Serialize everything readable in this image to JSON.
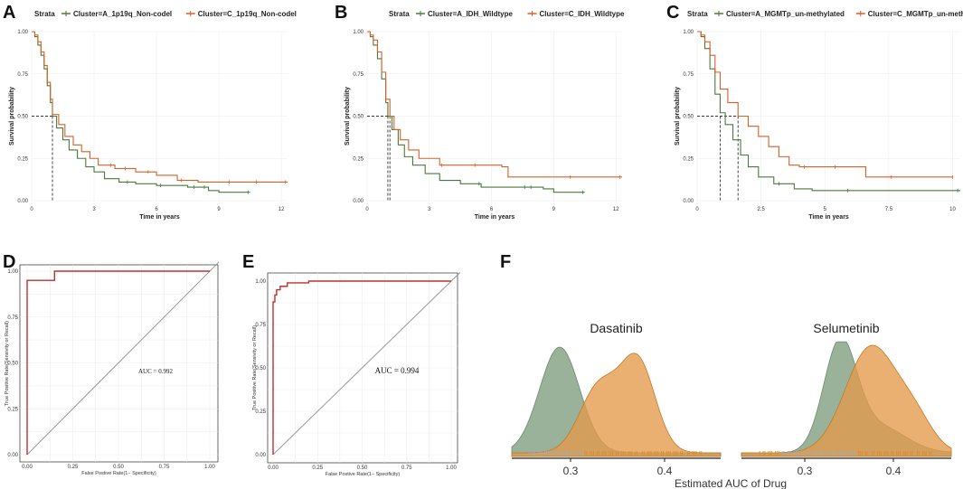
{
  "colors": {
    "clusterA": "#4a7a3a",
    "clusterC": "#d4612a",
    "roc": "#c0302e",
    "diag": "#999999",
    "densA": "#8fa88f",
    "densC": "#e39a4a",
    "rugA": "#a9a9a9",
    "rugC": "#e08a2a"
  },
  "panel_labels": [
    "A",
    "B",
    "C",
    "D",
    "E",
    "F"
  ],
  "chart_data": [
    {
      "id": "A",
      "type": "line",
      "subtype": "kaplan-meier",
      "legend_title": "Strata",
      "xlabel": "Time in years",
      "ylabel": "Survival probability",
      "xlim": [
        0,
        12.3
      ],
      "ylim": [
        0,
        1.0
      ],
      "x_ticks": [
        0,
        3,
        6,
        9,
        12
      ],
      "y_ticks": [
        "0.00",
        "0.25",
        "0.50",
        "0.75",
        "1.00"
      ],
      "median_lines": [
        1.0
      ],
      "series": [
        {
          "name": "Cluster=A_1p19q_Non-codel",
          "color_key": "clusterA",
          "points": [
            [
              0,
              1.0
            ],
            [
              0.15,
              0.97
            ],
            [
              0.3,
              0.92
            ],
            [
              0.45,
              0.86
            ],
            [
              0.6,
              0.78
            ],
            [
              0.75,
              0.68
            ],
            [
              0.9,
              0.58
            ],
            [
              1.0,
              0.5
            ],
            [
              1.2,
              0.43
            ],
            [
              1.5,
              0.36
            ],
            [
              1.8,
              0.3
            ],
            [
              2.2,
              0.25
            ],
            [
              2.6,
              0.2
            ],
            [
              3.0,
              0.17
            ],
            [
              3.5,
              0.13
            ],
            [
              4.2,
              0.11
            ],
            [
              5.0,
              0.1
            ],
            [
              6.0,
              0.09
            ],
            [
              7.5,
              0.08
            ],
            [
              8.5,
              0.06
            ],
            [
              9.0,
              0.05
            ],
            [
              10.5,
              0.05
            ]
          ],
          "censor": [
            4.6,
            6.2,
            7.8,
            8.3,
            10.4
          ]
        },
        {
          "name": "Cluster=C_1p19q_Non-codel",
          "color_key": "clusterC",
          "points": [
            [
              0,
              1.0
            ],
            [
              0.15,
              0.98
            ],
            [
              0.3,
              0.94
            ],
            [
              0.45,
              0.88
            ],
            [
              0.6,
              0.8
            ],
            [
              0.75,
              0.7
            ],
            [
              0.9,
              0.6
            ],
            [
              1.0,
              0.51
            ],
            [
              1.3,
              0.45
            ],
            [
              1.6,
              0.38
            ],
            [
              2.0,
              0.33
            ],
            [
              2.4,
              0.29
            ],
            [
              2.8,
              0.25
            ],
            [
              3.2,
              0.21
            ],
            [
              4.0,
              0.19
            ],
            [
              5.0,
              0.17
            ],
            [
              6.0,
              0.15
            ],
            [
              7.0,
              0.12
            ],
            [
              8.0,
              0.11
            ],
            [
              9.0,
              0.11
            ],
            [
              12.3,
              0.11
            ]
          ],
          "censor": [
            3.8,
            4.5,
            5.6,
            7.2,
            9.5,
            10.8,
            12.2
          ]
        }
      ]
    },
    {
      "id": "B",
      "type": "line",
      "subtype": "kaplan-meier",
      "legend_title": "Strata",
      "xlabel": "Time in years",
      "ylabel": "Survival probability",
      "xlim": [
        0,
        12.3
      ],
      "ylim": [
        0,
        1.0
      ],
      "x_ticks": [
        0,
        3,
        6,
        9,
        12
      ],
      "y_ticks": [
        "0.00",
        "0.25",
        "0.50",
        "0.75",
        "1.00"
      ],
      "median_lines": [
        1.0,
        1.1
      ],
      "series": [
        {
          "name": "Cluster=A_IDH_Wildtype",
          "color_key": "clusterA",
          "points": [
            [
              0,
              1.0
            ],
            [
              0.15,
              0.97
            ],
            [
              0.3,
              0.92
            ],
            [
              0.5,
              0.84
            ],
            [
              0.7,
              0.72
            ],
            [
              0.9,
              0.58
            ],
            [
              1.0,
              0.5
            ],
            [
              1.2,
              0.42
            ],
            [
              1.5,
              0.33
            ],
            [
              1.8,
              0.26
            ],
            [
              2.2,
              0.21
            ],
            [
              2.8,
              0.16
            ],
            [
              3.5,
              0.12
            ],
            [
              4.5,
              0.1
            ],
            [
              5.5,
              0.08
            ],
            [
              7.0,
              0.08
            ],
            [
              8.5,
              0.07
            ],
            [
              9.0,
              0.05
            ],
            [
              10.5,
              0.05
            ]
          ],
          "censor": [
            5.4,
            7.6,
            7.9,
            10.4
          ]
        },
        {
          "name": "Cluster=C_IDH_Wildtype",
          "color_key": "clusterC",
          "points": [
            [
              0,
              1.0
            ],
            [
              0.15,
              0.98
            ],
            [
              0.3,
              0.95
            ],
            [
              0.5,
              0.88
            ],
            [
              0.7,
              0.76
            ],
            [
              0.9,
              0.6
            ],
            [
              1.1,
              0.5
            ],
            [
              1.3,
              0.42
            ],
            [
              1.6,
              0.36
            ],
            [
              2.0,
              0.3
            ],
            [
              2.5,
              0.25
            ],
            [
              3.5,
              0.21
            ],
            [
              5.0,
              0.21
            ],
            [
              6.5,
              0.2
            ],
            [
              6.8,
              0.14
            ],
            [
              9.0,
              0.14
            ],
            [
              12.3,
              0.14
            ]
          ],
          "censor": [
            3.6,
            5.2,
            9.8,
            12.2
          ]
        }
      ]
    },
    {
      "id": "C",
      "type": "line",
      "subtype": "kaplan-meier",
      "legend_title": "Strata",
      "xlabel": "Time in years",
      "ylabel": "Survival probability",
      "xlim": [
        0,
        10.3
      ],
      "ylim": [
        0,
        1.0
      ],
      "x_ticks": [
        0,
        2.5,
        5,
        7.5,
        10
      ],
      "y_ticks": [
        "0.00",
        "0.25",
        "0.50",
        "0.75",
        "1.00"
      ],
      "median_lines": [
        0.9,
        1.6
      ],
      "series": [
        {
          "name": "Cluster=A_MGMTp_un-methylated",
          "color_key": "clusterA",
          "points": [
            [
              0,
              1.0
            ],
            [
              0.15,
              0.97
            ],
            [
              0.3,
              0.9
            ],
            [
              0.5,
              0.78
            ],
            [
              0.7,
              0.63
            ],
            [
              0.9,
              0.52
            ],
            [
              1.1,
              0.45
            ],
            [
              1.4,
              0.36
            ],
            [
              1.7,
              0.27
            ],
            [
              2.0,
              0.2
            ],
            [
              2.4,
              0.14
            ],
            [
              3.0,
              0.1
            ],
            [
              3.8,
              0.07
            ],
            [
              4.5,
              0.06
            ],
            [
              6.0,
              0.06
            ],
            [
              8.0,
              0.06
            ],
            [
              10.3,
              0.06
            ]
          ],
          "censor": [
            3.2,
            5.9,
            10.2
          ]
        },
        {
          "name": "Cluster=C_MGMTp_un-methylated",
          "color_key": "clusterC",
          "points": [
            [
              0,
              1.0
            ],
            [
              0.15,
              0.98
            ],
            [
              0.3,
              0.94
            ],
            [
              0.5,
              0.86
            ],
            [
              0.7,
              0.76
            ],
            [
              0.9,
              0.66
            ],
            [
              1.2,
              0.58
            ],
            [
              1.6,
              0.5
            ],
            [
              2.0,
              0.44
            ],
            [
              2.4,
              0.38
            ],
            [
              2.8,
              0.32
            ],
            [
              3.2,
              0.26
            ],
            [
              3.6,
              0.21
            ],
            [
              4.0,
              0.2
            ],
            [
              5.5,
              0.2
            ],
            [
              6.5,
              0.2
            ],
            [
              6.6,
              0.14
            ],
            [
              8.5,
              0.14
            ],
            [
              10.0,
              0.14
            ]
          ],
          "censor": [
            4.2,
            5.4,
            7.6,
            10.0
          ]
        }
      ]
    },
    {
      "id": "D",
      "type": "line",
      "subtype": "roc",
      "xlabel": "False Postive Rate(1− Specificity)",
      "ylabel": "True Positive Rate(Sensivity or Recall)",
      "x_ticks": [
        "0.00",
        "0.25",
        "0.50",
        "0.75",
        "1.00"
      ],
      "y_ticks": [
        "0.00",
        "0.25",
        "0.50",
        "0.75",
        "1.00"
      ],
      "auc_label": "AUC = 0.992",
      "points": [
        [
          0,
          0
        ],
        [
          0,
          0.95
        ],
        [
          0.15,
          0.95
        ],
        [
          0.15,
          1.0
        ],
        [
          1.0,
          1.0
        ]
      ]
    },
    {
      "id": "E",
      "type": "line",
      "subtype": "roc",
      "xlabel": "False Postive Rate(1− Specificity)",
      "ylabel": "True Positive Rate(Sensivity or Recall)",
      "x_ticks": [
        "0.00",
        "0.25",
        "0.50",
        "0.75",
        "1.00"
      ],
      "y_ticks": [
        "0.00",
        "0.25",
        "0.50",
        "0.75",
        "1.00"
      ],
      "auc_label": "AUC = 0.994",
      "points": [
        [
          0,
          0
        ],
        [
          0,
          0.88
        ],
        [
          0.01,
          0.88
        ],
        [
          0.01,
          0.92
        ],
        [
          0.02,
          0.92
        ],
        [
          0.02,
          0.95
        ],
        [
          0.04,
          0.95
        ],
        [
          0.04,
          0.97
        ],
        [
          0.08,
          0.97
        ],
        [
          0.08,
          0.99
        ],
        [
          0.2,
          0.99
        ],
        [
          0.2,
          1.0
        ],
        [
          1.0,
          1.0
        ]
      ]
    },
    {
      "id": "F",
      "type": "area",
      "subtype": "density",
      "xlabel": "Estimated AUC of Drug",
      "panels": [
        {
          "title": "Dasatinib",
          "xlim": [
            0.23,
            0.47
          ],
          "x_ticks": [
            "0.3",
            "0.4"
          ],
          "A": {
            "peak": 0.285,
            "sd": 0.023,
            "amp": 1.0
          },
          "C": {
            "mix": [
              [
                0.33,
                0.022,
                0.62
              ],
              [
                0.375,
                0.02,
                0.85
              ]
            ]
          }
        },
        {
          "title": "Selumetinib",
          "xlim": [
            0.24,
            0.47
          ],
          "x_ticks": [
            "0.3",
            "0.4"
          ],
          "A": {
            "peak": 0.348,
            "sd": 0.018,
            "amp": 1.0,
            "tail": [
              0.39,
              0.03,
              0.25
            ]
          },
          "C": {
            "mix": [
              [
                0.382,
                0.028,
                1.0
              ],
              [
                0.43,
                0.02,
                0.28
              ]
            ]
          }
        }
      ]
    }
  ]
}
